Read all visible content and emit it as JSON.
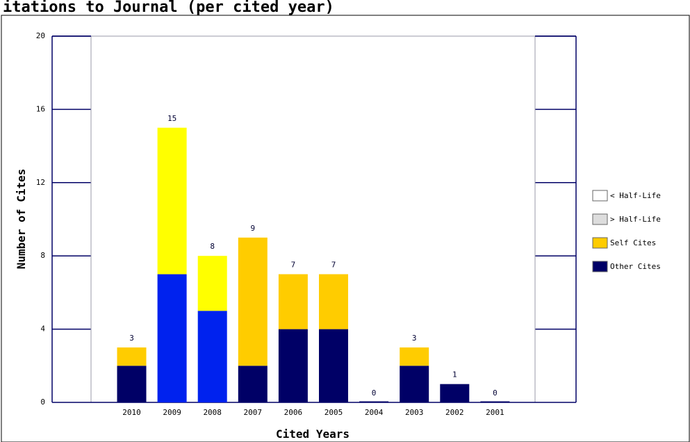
{
  "page": {
    "title_fragment": "itations to Journal (per cited year)"
  },
  "colors": {
    "other_cites": "#000066",
    "self_cites": "#ffcc00",
    "other_cites_highlight": "#0022ee",
    "self_cites_highlight": "#ffff00",
    "lt_half_life": "#ffffff",
    "gt_half_life": "#dddddd",
    "axis": "#000066",
    "frame": "#9999aa"
  },
  "chart_data": {
    "type": "bar",
    "stacked": true,
    "xlabel": "Cited Years",
    "ylabel": "Number of Cites",
    "ylim": [
      0,
      20
    ],
    "yticks": [
      0,
      4,
      8,
      12,
      16,
      20
    ],
    "categories": [
      "2010",
      "2009",
      "2008",
      "2007",
      "2006",
      "2005",
      "2004",
      "2003",
      "2002",
      "2001"
    ],
    "series": [
      {
        "name": "Other Cites",
        "values": [
          2,
          7,
          5,
          2,
          4,
          4,
          0,
          2,
          1,
          0
        ]
      },
      {
        "name": "Self Cites",
        "values": [
          1,
          8,
          3,
          7,
          3,
          3,
          0,
          1,
          0,
          0
        ]
      }
    ],
    "totals": [
      3,
      15,
      8,
      9,
      7,
      7,
      0,
      3,
      1,
      0
    ],
    "highlighted_categories": [
      "2009",
      "2008"
    ],
    "legend": {
      "placement": "right",
      "items": [
        {
          "label": "< Half-Life",
          "color": "#ffffff"
        },
        {
          "label": "> Half-Life",
          "color": "#dddddd"
        },
        {
          "label": "Self Cites",
          "color": "#ffcc00"
        },
        {
          "label": "Other Cites",
          "color": "#000066"
        }
      ]
    }
  }
}
